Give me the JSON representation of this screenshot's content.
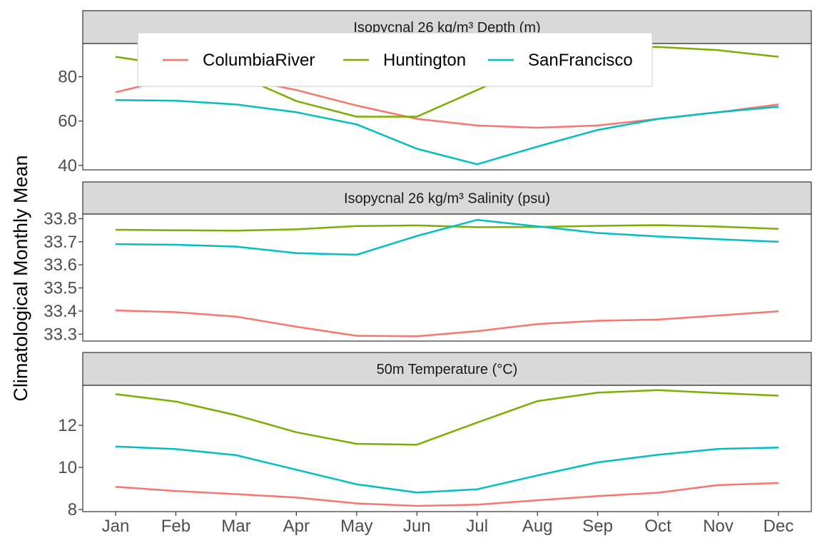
{
  "chart_data": {
    "type": "line",
    "ylabel": "Climatological Monthly Mean",
    "months": [
      "Jan",
      "Feb",
      "Mar",
      "Apr",
      "May",
      "Jun",
      "Jul",
      "Aug",
      "Sep",
      "Oct",
      "Nov",
      "Dec"
    ],
    "legend": {
      "placement": "top-left inside first panel",
      "entries": [
        "ColumbiaRiver",
        "Huntington",
        "SanFrancisco"
      ]
    },
    "colors": {
      "ColumbiaRiver": "#F8766D",
      "Huntington": "#7CAE00",
      "SanFrancisco": "#00BFC4"
    },
    "panels": [
      {
        "title": "Isopycnal 26 kg/m³ Depth (m)",
        "ylim": [
          38,
          95
        ],
        "yticks": [
          40,
          60,
          80
        ],
        "ytick_labels": [
          "40",
          "60",
          "80"
        ],
        "series": [
          {
            "name": "ColumbiaRiver",
            "values": [
              73,
              79.5,
              79.5,
              74,
              67,
              61,
              58,
              57,
              58,
              61,
              64,
              67.5
            ]
          },
          {
            "name": "Huntington",
            "values": [
              89,
              85,
              81,
              69,
              62,
              62,
              74,
              86,
              93,
              93.5,
              92,
              89
            ]
          },
          {
            "name": "SanFrancisco",
            "values": [
              69.5,
              69.2,
              67.5,
              64,
              58.5,
              47.5,
              40.5,
              48.5,
              56,
              61,
              64,
              66.5
            ]
          }
        ]
      },
      {
        "title": "Isopycnal 26 kg/m³ Salinity (psu)",
        "ylim": [
          33.27,
          33.82
        ],
        "yticks": [
          33.3,
          33.4,
          33.5,
          33.6,
          33.7,
          33.8
        ],
        "ytick_labels": [
          "33.3",
          "33.4",
          "33.5",
          "33.6",
          "33.7",
          "33.8"
        ],
        "series": [
          {
            "name": "ColumbiaRiver",
            "values": [
              33.403,
              33.395,
              33.376,
              33.332,
              33.293,
              33.291,
              33.313,
              33.344,
              33.358,
              33.363,
              33.381,
              33.399
            ]
          },
          {
            "name": "Huntington",
            "values": [
              33.752,
              33.75,
              33.748,
              33.754,
              33.768,
              33.771,
              33.763,
              33.764,
              33.769,
              33.772,
              33.766,
              33.756
            ]
          },
          {
            "name": "SanFrancisco",
            "values": [
              33.69,
              33.687,
              33.679,
              33.651,
              33.644,
              33.725,
              33.795,
              33.767,
              33.738,
              33.723,
              33.711,
              33.7
            ]
          }
        ]
      },
      {
        "title": "50m Temperature (°C)",
        "ylim": [
          7.9,
          13.9
        ],
        "yticks": [
          8,
          10,
          12
        ],
        "ytick_labels": [
          "8",
          "10",
          "12"
        ],
        "series": [
          {
            "name": "ColumbiaRiver",
            "values": [
              9.08,
              8.88,
              8.73,
              8.57,
              8.29,
              8.17,
              8.23,
              8.44,
              8.64,
              8.8,
              9.16,
              9.26
            ]
          },
          {
            "name": "Huntington",
            "values": [
              13.48,
              13.13,
              12.48,
              11.67,
              11.12,
              11.08,
              12.13,
              13.15,
              13.55,
              13.67,
              13.53,
              13.41
            ]
          },
          {
            "name": "SanFrancisco",
            "values": [
              10.99,
              10.87,
              10.58,
              9.89,
              9.2,
              8.81,
              8.96,
              9.62,
              10.24,
              10.6,
              10.88,
              10.94
            ]
          }
        ]
      }
    ],
    "grid": false
  }
}
